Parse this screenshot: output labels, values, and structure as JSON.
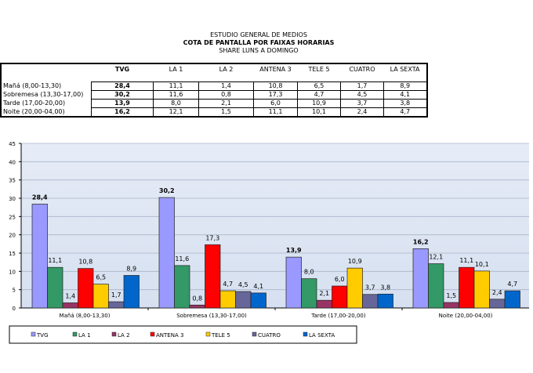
{
  "header": {
    "line1": "ESTUDIO GENERAL DE MEDIOS",
    "line2": "COTA DE PANTALLA POR FAIXAS HORARIAS",
    "line3": "SHARE LUNS A DOMINGO"
  },
  "table": {
    "columns": [
      "TVG",
      "LA 1",
      "LA 2",
      "ANTENA 3",
      "TELE 5",
      "CUATRO",
      "LA SEXTA"
    ],
    "rows": [
      {
        "label": "Mañá (8,00-13,30)",
        "values": [
          "28,4",
          "11,1",
          "1,4",
          "10,8",
          "6,5",
          "1,7",
          "8,9"
        ]
      },
      {
        "label": "Sobremesa (13,30-17,00)",
        "values": [
          "30,2",
          "11,6",
          "0,8",
          "17,3",
          "4,7",
          "4,5",
          "4,1"
        ]
      },
      {
        "label": "Tarde (17,00-20,00)",
        "values": [
          "13,9",
          "8,0",
          "2,1",
          "6,0",
          "10,9",
          "3,7",
          "3,8"
        ]
      },
      {
        "label": "Noite (20,00-04,00)",
        "values": [
          "16,2",
          "12,1",
          "1,5",
          "11,1",
          "10,1",
          "2,4",
          "4,7"
        ]
      }
    ]
  },
  "chart_data": {
    "type": "bar",
    "categories": [
      "Mañá (8,00-13,30)",
      "Sobremesa (13,30-17,00)",
      "Tarde (17,00-20,00)",
      "Noite (20,00-04,00)"
    ],
    "series": [
      {
        "name": "TVG",
        "color": "#9999ff",
        "values": [
          28.4,
          30.2,
          13.9,
          16.2
        ],
        "labels": [
          "28,4",
          "30,2",
          "13,9",
          "16,2"
        ]
      },
      {
        "name": "LA 1",
        "color": "#339966",
        "values": [
          11.1,
          11.6,
          8.0,
          12.1
        ],
        "labels": [
          "11,1",
          "11,6",
          "8,0",
          "12,1"
        ]
      },
      {
        "name": "LA 2",
        "color": "#993366",
        "values": [
          1.4,
          0.8,
          2.1,
          1.5
        ],
        "labels": [
          "1,4",
          "0,8",
          "2,1",
          "1,5"
        ]
      },
      {
        "name": "ANTENA 3",
        "color": "#ff0000",
        "values": [
          10.8,
          17.3,
          6.0,
          11.1
        ],
        "labels": [
          "10,8",
          "17,3",
          "6,0",
          "11,1"
        ]
      },
      {
        "name": "TELE 5",
        "color": "#ffcc00",
        "values": [
          6.5,
          4.7,
          10.9,
          10.1
        ],
        "labels": [
          "6,5",
          "4,7",
          "10,9",
          "10,1"
        ]
      },
      {
        "name": "CUATRO",
        "color": "#666699",
        "values": [
          1.7,
          4.5,
          3.7,
          2.4
        ],
        "labels": [
          "1,7",
          "4,5",
          "3,7",
          "2,4"
        ]
      },
      {
        "name": "LA SEXTA",
        "color": "#0066cc",
        "values": [
          8.9,
          4.1,
          3.8,
          4.7
        ],
        "labels": [
          "8,9",
          "4,1",
          "3,8",
          "4,7"
        ]
      }
    ],
    "ylim": [
      0,
      45
    ],
    "yticks": [
      "0",
      "5",
      "10",
      "15",
      "20",
      "25",
      "30",
      "35",
      "40",
      "45"
    ],
    "grid": true,
    "legend": "bottom"
  }
}
